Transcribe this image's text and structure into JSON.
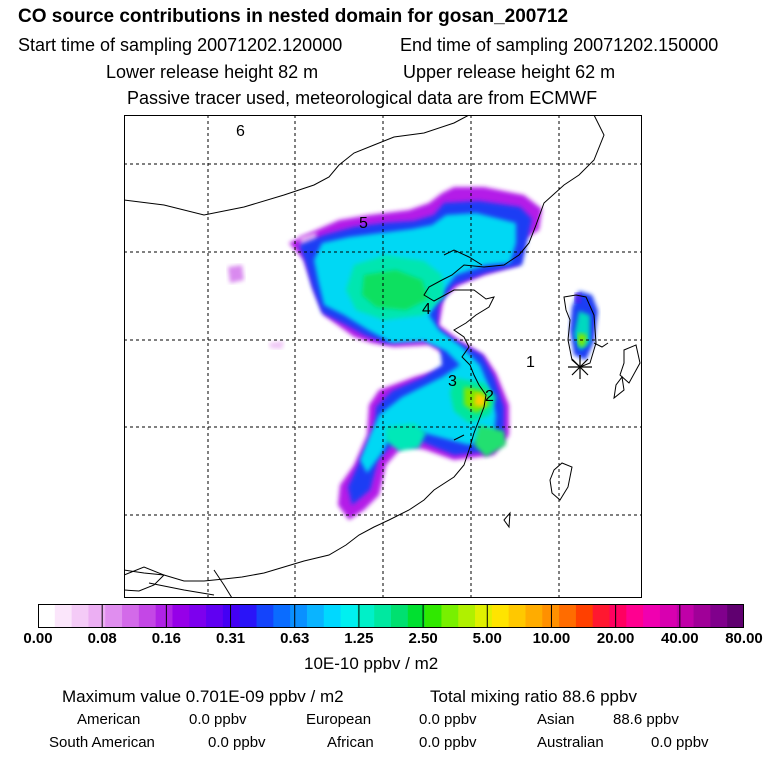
{
  "header": {
    "title": "CO  source contributions in nested domain for gosan_200712",
    "start_label": "Start time of sampling 20071202.120000",
    "end_label": "End time of sampling 20071202.150000",
    "lower_label": "Lower release height   82 m",
    "upper_label": "Upper release height   62 m",
    "note": "Passive tracer used, meteorological data are from ECMWF"
  },
  "map": {
    "region_labels": [
      "1",
      "2",
      "3",
      "4",
      "5",
      "6"
    ],
    "receptor_marker": "asterisk-icon"
  },
  "colorbar": {
    "tick_labels": [
      "0.00",
      "0.08",
      "0.16",
      "0.31",
      "0.63",
      "1.25",
      "2.50",
      "5.00",
      "10.00",
      "20.00",
      "40.00",
      "80.00"
    ],
    "unit": "10E-10 ppbv / m2",
    "colors": [
      "#ffffff",
      "#fbe6fb",
      "#f4cbf7",
      "#ecaff3",
      "#e08eef",
      "#d36ae9",
      "#c447e6",
      "#b022e6",
      "#9600e8",
      "#7d00ee",
      "#6000f2",
      "#4400f4",
      "#2a14f8",
      "#1444fb",
      "#0a6cff",
      "#0a90ff",
      "#0ab4ff",
      "#00d8ff",
      "#00f0f0",
      "#00f0c8",
      "#00e8a0",
      "#00e070",
      "#00e030",
      "#30e800",
      "#78f000",
      "#b0f000",
      "#e0f000",
      "#ffe400",
      "#ffc800",
      "#ffac00",
      "#ff9000",
      "#ff6c00",
      "#ff4000",
      "#ff1830",
      "#ff0060",
      "#ff0090",
      "#f000b0",
      "#d800b0",
      "#c000a8",
      "#a00098",
      "#80008c",
      "#600070"
    ]
  },
  "footer": {
    "max_label": "Maximum value  0.701E-09 ppbv / m2",
    "total_label": "Total mixing ratio       88.6 ppbv",
    "american_label": "American",
    "american_value": "0.0 ppbv",
    "european_label": "European",
    "european_value": "0.0 ppbv",
    "asian_label": "Asian",
    "asian_value": "88.6 ppbv",
    "south_american_label": "South American",
    "south_american_value": "0.0 ppbv",
    "african_label": "African",
    "african_value": "0.0 ppbv",
    "australian_label": "Australian",
    "australian_value": "0.0 ppbv"
  }
}
